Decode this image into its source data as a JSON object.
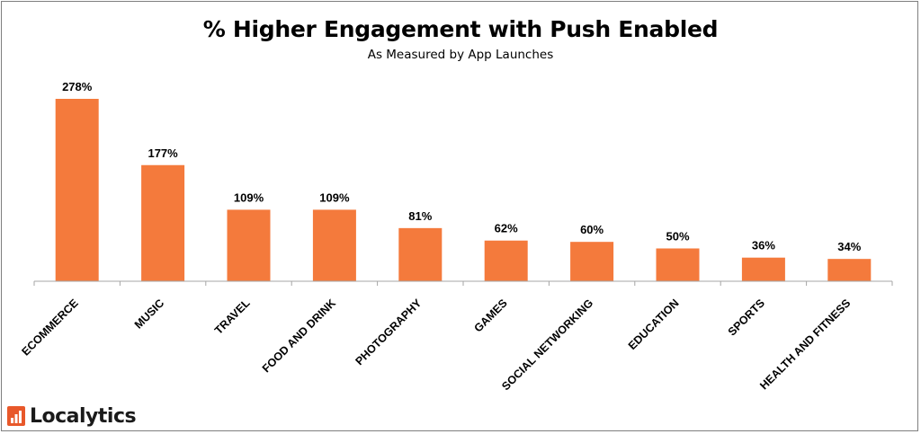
{
  "chart_data": {
    "type": "bar",
    "title": "% Higher Engagement with Push Enabled",
    "subtitle": "As Measured by App Launches",
    "categories": [
      "ECOMMERCE",
      "MUSIC",
      "TRAVEL",
      "FOOD AND DRINK",
      "PHOTOGRAPHY",
      "GAMES",
      "SOCIAL NETWORKING",
      "EDUCATION",
      "SPORTS",
      "HEALTH AND FITNESS"
    ],
    "values": [
      278,
      177,
      109,
      109,
      81,
      62,
      60,
      50,
      36,
      34
    ],
    "value_labels": [
      "278%",
      "177%",
      "109%",
      "109%",
      "81%",
      "62%",
      "60%",
      "50%",
      "36%",
      "34%"
    ],
    "unit": "%",
    "bar_color": "#f47a3c",
    "grid": false,
    "legend": "none"
  },
  "brand": {
    "name": "Localytics",
    "icon": "bar-chart-logo-icon",
    "icon_color": "#e8582a"
  }
}
